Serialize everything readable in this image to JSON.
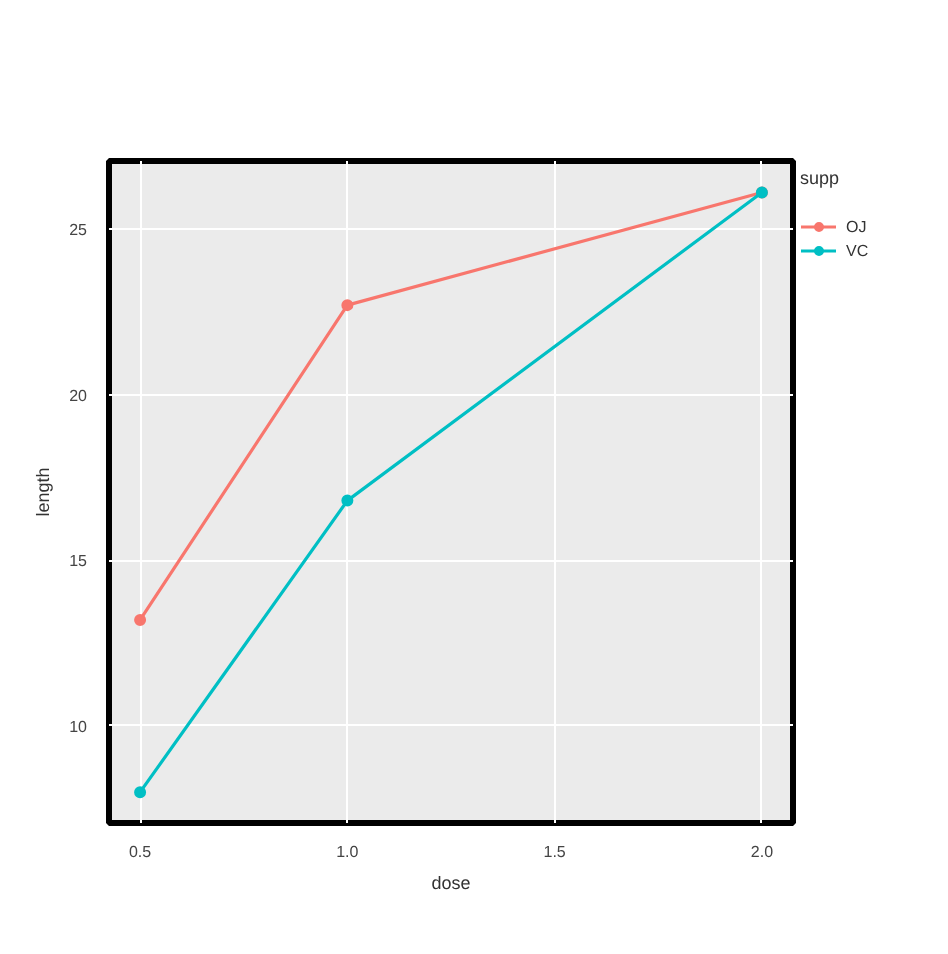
{
  "chart_data": {
    "type": "line",
    "xlabel": "dose",
    "ylabel": "length",
    "legend_title": "supp",
    "x": [
      0.5,
      1,
      2
    ],
    "series": [
      {
        "name": "OJ",
        "color": "#f8766d",
        "values": [
          13.2,
          22.7,
          26.1
        ]
      },
      {
        "name": "VC",
        "color": "#00bfc4",
        "values": [
          8.0,
          16.8,
          26.1
        ]
      }
    ],
    "xlim": [
      0.425,
      2.075
    ],
    "ylim": [
      7.07,
      27.05
    ],
    "xticks": [
      0.5,
      {
        "value": 1,
        "label": "1.0"
      },
      1.5,
      {
        "value": 2,
        "label": "2.0"
      }
    ],
    "yticks": [
      10,
      15,
      20,
      25
    ],
    "grid": true,
    "legend": "right",
    "marker": "circle",
    "line_style": "solid"
  }
}
